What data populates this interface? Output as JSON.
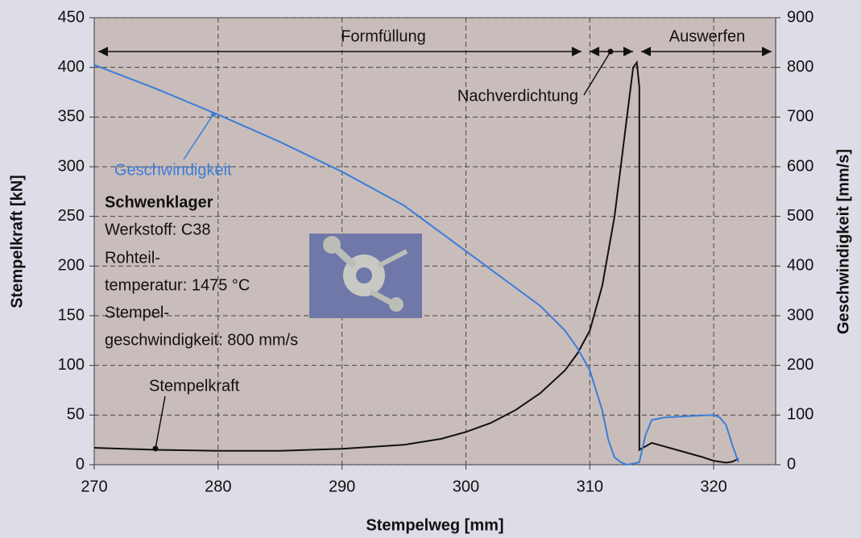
{
  "chart_data": {
    "type": "line",
    "xlabel": "Stempelweg [mm]",
    "ylabel": "Stempelkraft [kN]",
    "y2label": "Geschwindigkeit [mm/s]",
    "xlim": [
      270,
      325
    ],
    "xticks": [
      270,
      280,
      290,
      300,
      310,
      320
    ],
    "ylim": [
      0,
      450
    ],
    "yticks": [
      0,
      50,
      100,
      150,
      200,
      250,
      300,
      350,
      400,
      450
    ],
    "y2lim": [
      0,
      900
    ],
    "y2ticks": [
      0,
      100,
      200,
      300,
      400,
      500,
      600,
      700,
      800,
      900
    ],
    "grid": true,
    "series": [
      {
        "name": "Stempelkraft",
        "color": "#111111",
        "x": [
          270,
          275,
          280,
          285,
          290,
          295,
          298,
          300,
          302,
          304,
          306,
          308,
          309,
          310,
          311,
          312,
          312.5,
          313,
          313.5,
          313.8,
          314,
          314,
          315,
          317,
          319,
          320,
          321,
          321.5,
          322
        ],
        "values": [
          17,
          15,
          14,
          14,
          16,
          20,
          26,
          33,
          42,
          55,
          72,
          95,
          112,
          135,
          180,
          250,
          300,
          350,
          400,
          405,
          380,
          15,
          22,
          15,
          8,
          4,
          2,
          3,
          6
        ]
      },
      {
        "name": "Geschwindigkeit",
        "color": "#3b7dd8",
        "axis": "y2",
        "x": [
          270,
          275,
          280,
          285,
          290,
          295,
          300,
          303,
          306,
          308,
          309,
          310,
          311,
          311.5,
          312,
          312.5,
          313,
          313.5,
          314,
          314.5,
          315,
          316,
          318,
          320,
          320.5,
          321,
          321.5,
          322
        ],
        "values": [
          805,
          757,
          705,
          650,
          590,
          522,
          430,
          375,
          320,
          270,
          235,
          190,
          110,
          50,
          15,
          5,
          0,
          2,
          5,
          60,
          90,
          95,
          98,
          100,
          95,
          80,
          40,
          5
        ]
      }
    ],
    "annotations": [
      "Formfüllung",
      "Nachverdichtung",
      "Auswerfen",
      "Geschwindigkeit",
      "Stempelkraft"
    ],
    "info_box": [
      "Schwenklager",
      "Werkstoff: C38",
      "Rohteil-",
      "temperatur: 1475 °C",
      "Stempel-",
      "geschwindigkeit: 800 mm/s"
    ]
  }
}
